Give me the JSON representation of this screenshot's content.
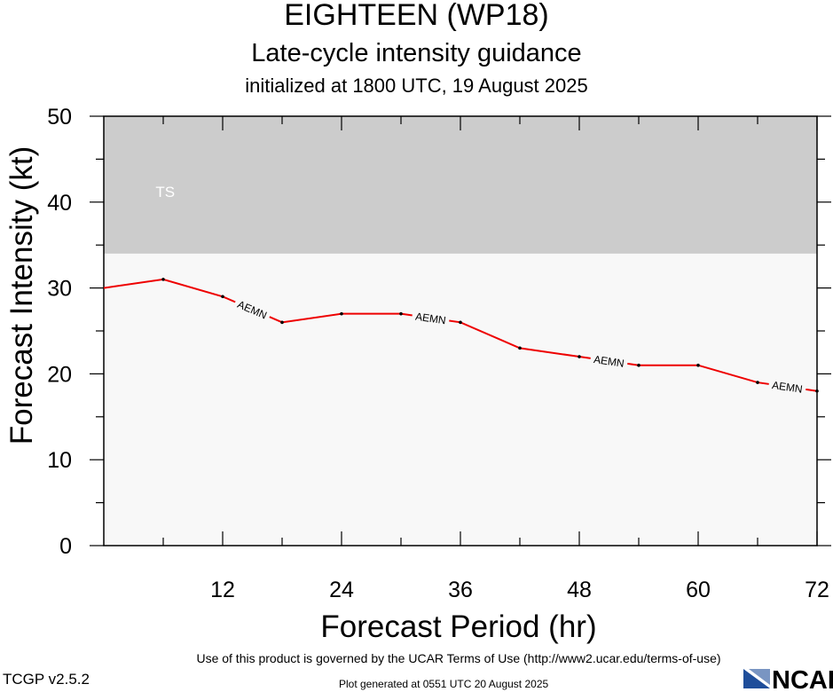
{
  "title": "EIGHTEEN (WP18)",
  "subtitle": "Late-cycle intensity guidance",
  "initialized": "initialized at 1800 UTC, 19 August 2025",
  "footer": {
    "terms": "Use of this product is governed by the UCAR Terms of Use (http://www2.ucar.edu/terms-of-use)",
    "version": "TCGP v2.5.2",
    "generated": "Plot generated at 0551 UTC   20 August 2025",
    "logo_text": "NCAR"
  },
  "colors": {
    "ts_band": "#cccccc",
    "plot_bg": "#f8f8f8",
    "series_line": "#ee0000",
    "logo_blue": "#1f4e9a"
  },
  "chart_data": {
    "type": "line",
    "title": "",
    "xlabel": "Forecast Period (hr)",
    "ylabel": "Forecast Intensity (kt)",
    "xlim": [
      0,
      72
    ],
    "ylim": [
      0,
      50
    ],
    "xticks": [
      12,
      24,
      36,
      48,
      60,
      72
    ],
    "yticks": [
      0,
      10,
      20,
      30,
      40,
      50
    ],
    "grid": false,
    "bands": [
      {
        "label": "TS",
        "ymin": 34,
        "ymax": 50
      }
    ],
    "series": [
      {
        "name": "AEMN",
        "x": [
          0,
          6,
          12,
          18,
          24,
          30,
          36,
          42,
          48,
          54,
          60,
          66,
          72
        ],
        "y": [
          30,
          31,
          29,
          26,
          27,
          27,
          26,
          23,
          22,
          21,
          21,
          19,
          18
        ],
        "label_positions_hr": [
          15,
          33,
          51,
          69
        ]
      }
    ]
  }
}
